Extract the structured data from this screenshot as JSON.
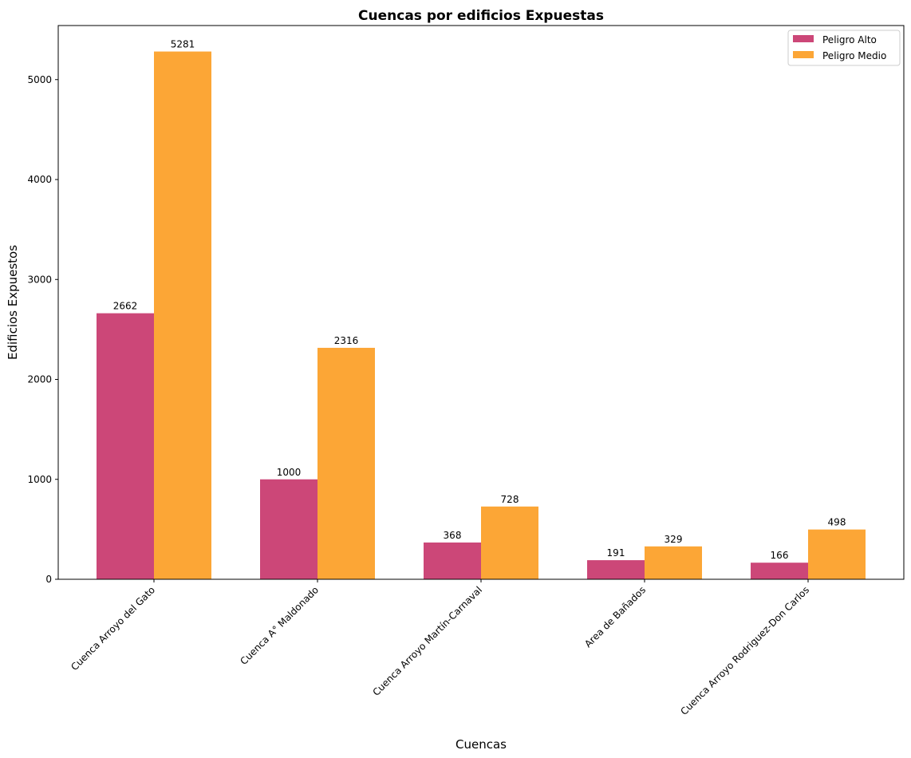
{
  "chart_data": {
    "type": "bar",
    "title": "Cuencas por edificios Expuestas",
    "xlabel": "Cuencas",
    "ylabel": "Edificios Expuestos",
    "categories": [
      "Cuenca Arroyo del Gato",
      "Cuenca A° Maldonado",
      "Cuenca Arroyo Martín-Carnaval",
      "Area de Bañados",
      "Cuenca Arroyo Rodriguez-Don Carlos"
    ],
    "series": [
      {
        "name": "Peligro Alto",
        "color": "#cc4778",
        "values": [
          2662,
          1000,
          368,
          191,
          166
        ]
      },
      {
        "name": "Peligro Medio",
        "color": "#fca636",
        "values": [
          5281,
          2316,
          728,
          329,
          498
        ]
      }
    ],
    "yticks": [
      0,
      1000,
      2000,
      3000,
      4000,
      5000
    ],
    "ylim": [
      0,
      5541
    ],
    "grid": false,
    "legend_position": "top-right"
  }
}
